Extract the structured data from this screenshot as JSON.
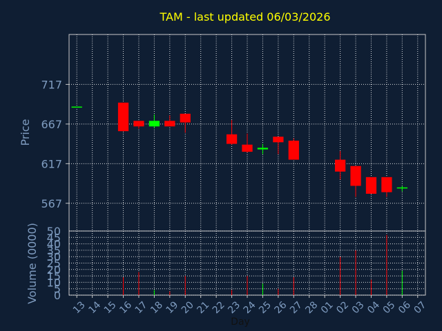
{
  "chart_data": {
    "type": "candlestick",
    "title": "TAM - last updated 06/03/2026",
    "ylabel": "Price",
    "volume_label": "Volume (0000)",
    "xlabel": "Day",
    "grid": true,
    "price_ticks": [
      567,
      617,
      667,
      717
    ],
    "price_ticks_text": [
      "567",
      "617",
      "667",
      "717"
    ],
    "volume_ticks": [
      0,
      5,
      10,
      15,
      20,
      25,
      30,
      35,
      40,
      45,
      50
    ],
    "volume_ticks_text": [
      "0",
      "5",
      "10",
      "15",
      "20",
      "25",
      "30",
      "35",
      "40",
      "45",
      "50"
    ],
    "ylim": [
      532,
      780
    ],
    "volume_ylim": [
      0,
      50
    ],
    "x_labels": [
      "13",
      "14",
      "15",
      "16",
      "17",
      "18",
      "19",
      "20",
      "21",
      "22",
      "23",
      "24",
      "25",
      "26",
      "27",
      "28",
      "01",
      "02",
      "03",
      "04",
      "05",
      "06",
      "07"
    ],
    "candles": [
      {
        "x": "13",
        "open": 689,
        "high": 689,
        "low": 689,
        "close": 689,
        "volume": 0
      },
      {
        "x": "16",
        "open": 694,
        "high": 694,
        "low": 658,
        "close": 658,
        "volume": 14
      },
      {
        "x": "17",
        "open": 671,
        "high": 671,
        "low": 661,
        "close": 664,
        "volume": 18
      },
      {
        "x": "18",
        "open": 664,
        "high": 679,
        "low": 662,
        "close": 671,
        "volume": 4
      },
      {
        "x": "19",
        "open": 671,
        "high": 678,
        "low": 664,
        "close": 664,
        "volume": 3
      },
      {
        "x": "20",
        "open": 680,
        "high": 680,
        "low": 656,
        "close": 669,
        "volume": 15
      },
      {
        "x": "23",
        "open": 654,
        "high": 672,
        "low": 641,
        "close": 642,
        "volume": 4
      },
      {
        "x": "24",
        "open": 641,
        "high": 655,
        "low": 631,
        "close": 632,
        "volume": 15
      },
      {
        "x": "25",
        "open": 635,
        "high": 642,
        "low": 629,
        "close": 637,
        "volume": 9
      },
      {
        "x": "26",
        "open": 651,
        "high": 651,
        "low": 629,
        "close": 644,
        "volume": 5
      },
      {
        "x": "27",
        "open": 646,
        "high": 649,
        "low": 622,
        "close": 622,
        "volume": 14
      },
      {
        "x": "02",
        "open": 622,
        "high": 633,
        "low": 597,
        "close": 607,
        "volume": 30
      },
      {
        "x": "03",
        "open": 614,
        "high": 614,
        "low": 575,
        "close": 589,
        "volume": 35
      },
      {
        "x": "04",
        "open": 600,
        "high": 600,
        "low": 579,
        "close": 579,
        "volume": 12
      },
      {
        "x": "05",
        "open": 600,
        "high": 600,
        "low": 575,
        "close": 581,
        "volume": 47
      },
      {
        "x": "06",
        "open": 586,
        "high": 589,
        "low": 582,
        "close": 587,
        "volume": 19
      }
    ],
    "colors": {
      "up": "#00ff00",
      "down": "#ff0000",
      "title": "#ffff00",
      "axis_text": "#7f9cc0",
      "background": "#0f1e33",
      "grid": "#ffffff"
    }
  }
}
